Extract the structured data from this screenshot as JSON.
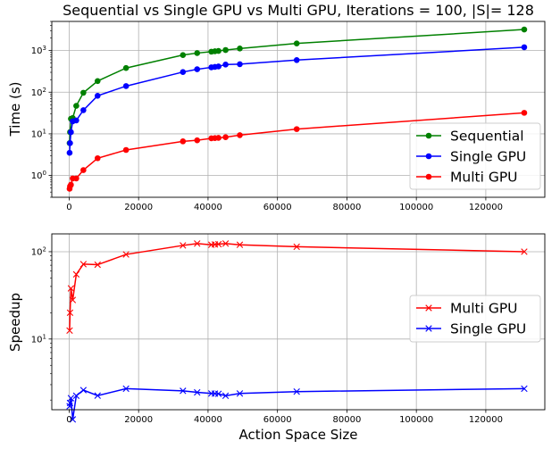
{
  "chart_data": [
    {
      "type": "line",
      "title": "Sequential vs Single GPU vs Multi GPU, Iterations = 100, |S|= 128",
      "xlabel": "",
      "ylabel": "Time (s)",
      "yscale": "log",
      "xlim": [
        -5000,
        137000
      ],
      "ylim": [
        0.3,
        5000
      ],
      "grid": true,
      "legend_position": "lower-right",
      "x": [
        128,
        256,
        512,
        1024,
        2048,
        4096,
        8192,
        16384,
        32768,
        36864,
        40960,
        41984,
        43008,
        45056,
        49152,
        65536,
        131072
      ],
      "xticks": [
        0,
        20000,
        40000,
        60000,
        80000,
        100000,
        120000
      ],
      "xtick_labels": [
        "0",
        "20000",
        "40000",
        "60000",
        "80000",
        "100000",
        "120000"
      ],
      "yticks": [
        1,
        10,
        100,
        1000
      ],
      "series": [
        {
          "name": "Sequential",
          "color": "#008000",
          "marker": "circle",
          "values": [
            6,
            11,
            23,
            24,
            47,
            97,
            185,
            380,
            780,
            870,
            940,
            960,
            980,
            1030,
            1120,
            1480,
            3200
          ]
        },
        {
          "name": "Single GPU",
          "color": "#0000ff",
          "marker": "circle",
          "values": [
            3.5,
            6,
            11,
            20,
            21,
            37,
            82,
            140,
            305,
            355,
            395,
            405,
            415,
            460,
            470,
            590,
            1200
          ]
        },
        {
          "name": "Multi GPU",
          "color": "#ff0000",
          "marker": "circle",
          "values": [
            0.48,
            0.55,
            0.6,
            0.85,
            0.85,
            1.35,
            2.6,
            4.1,
            6.6,
            7.0,
            7.8,
            7.9,
            8.0,
            8.3,
            9.3,
            13.0,
            32.0
          ]
        }
      ]
    },
    {
      "type": "line",
      "title": "",
      "xlabel": "Action Space Size",
      "ylabel": "Speedup",
      "yscale": "log",
      "xlim": [
        -5000,
        137000
      ],
      "ylim": [
        1.55,
        160
      ],
      "grid": true,
      "legend_position": "center-right",
      "x": [
        128,
        256,
        512,
        1024,
        2048,
        4096,
        8192,
        16384,
        32768,
        36864,
        40960,
        41984,
        43008,
        45056,
        49152,
        65536,
        131072
      ],
      "xticks": [
        0,
        20000,
        40000,
        60000,
        80000,
        100000,
        120000
      ],
      "xtick_labels": [
        "0",
        "20000",
        "40000",
        "60000",
        "80000",
        "100000",
        "120000"
      ],
      "yticks": [
        10,
        100
      ],
      "series": [
        {
          "name": "Multi GPU",
          "color": "#ff0000",
          "marker": "x",
          "values": [
            12.5,
            20,
            38,
            28,
            55,
            72,
            71,
            93,
            118,
            124,
            120,
            121,
            122,
            124,
            120,
            114,
            100
          ]
        },
        {
          "name": "Single GPU",
          "color": "#0000ff",
          "marker": "x",
          "values": [
            1.7,
            1.85,
            2.1,
            1.2,
            2.24,
            2.6,
            2.25,
            2.7,
            2.55,
            2.45,
            2.38,
            2.37,
            2.36,
            2.24,
            2.38,
            2.5,
            2.7
          ]
        }
      ]
    }
  ]
}
